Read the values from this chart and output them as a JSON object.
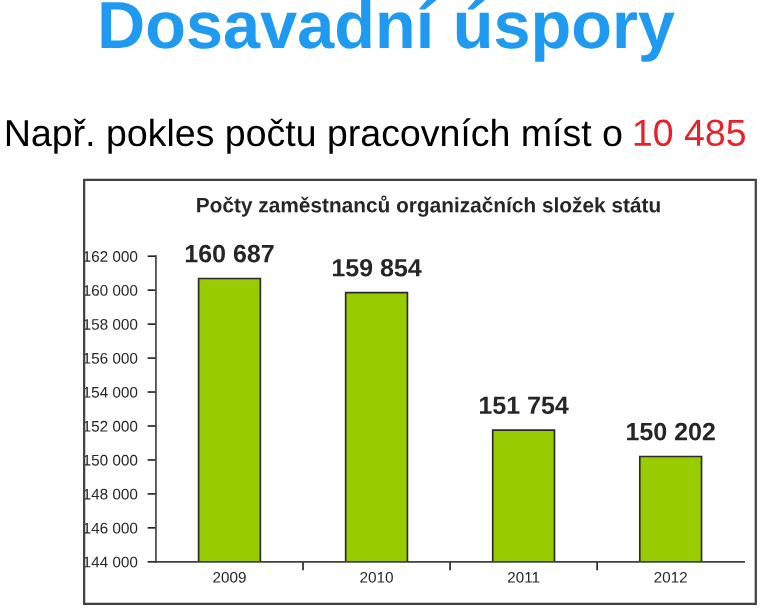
{
  "chart_data": {
    "type": "bar",
    "title": "Dosavadní úspory",
    "subtitle": "Např. pokles počtu pracovních míst o",
    "annotations": [
      "10 485",
      "Počty zaměstnanců organizačních složek státu"
    ],
    "categories": [
      "2009",
      "2010",
      "2011",
      "2012"
    ],
    "values": [
      160687,
      159854,
      151754,
      150202
    ],
    "value_labels": [
      "160 687",
      "159 854",
      "151 754",
      "150 202"
    ],
    "color": "#99cc00",
    "ylim": [
      144000,
      162000
    ],
    "yticks": [
      {
        "value": 144000,
        "label": "144 000"
      },
      {
        "value": 146000,
        "label": "146 000"
      },
      {
        "value": 148000,
        "label": "148 000"
      },
      {
        "value": 150000,
        "label": "150 000"
      },
      {
        "value": 152000,
        "label": "152 000"
      },
      {
        "value": 154000,
        "label": "154 000"
      },
      {
        "value": 156000,
        "label": "156 000"
      },
      {
        "value": 158000,
        "label": "158 000"
      },
      {
        "value": 160000,
        "label": "160 000"
      },
      {
        "value": 162000,
        "label": "162 000"
      }
    ],
    "grid": false,
    "legend": false
  }
}
